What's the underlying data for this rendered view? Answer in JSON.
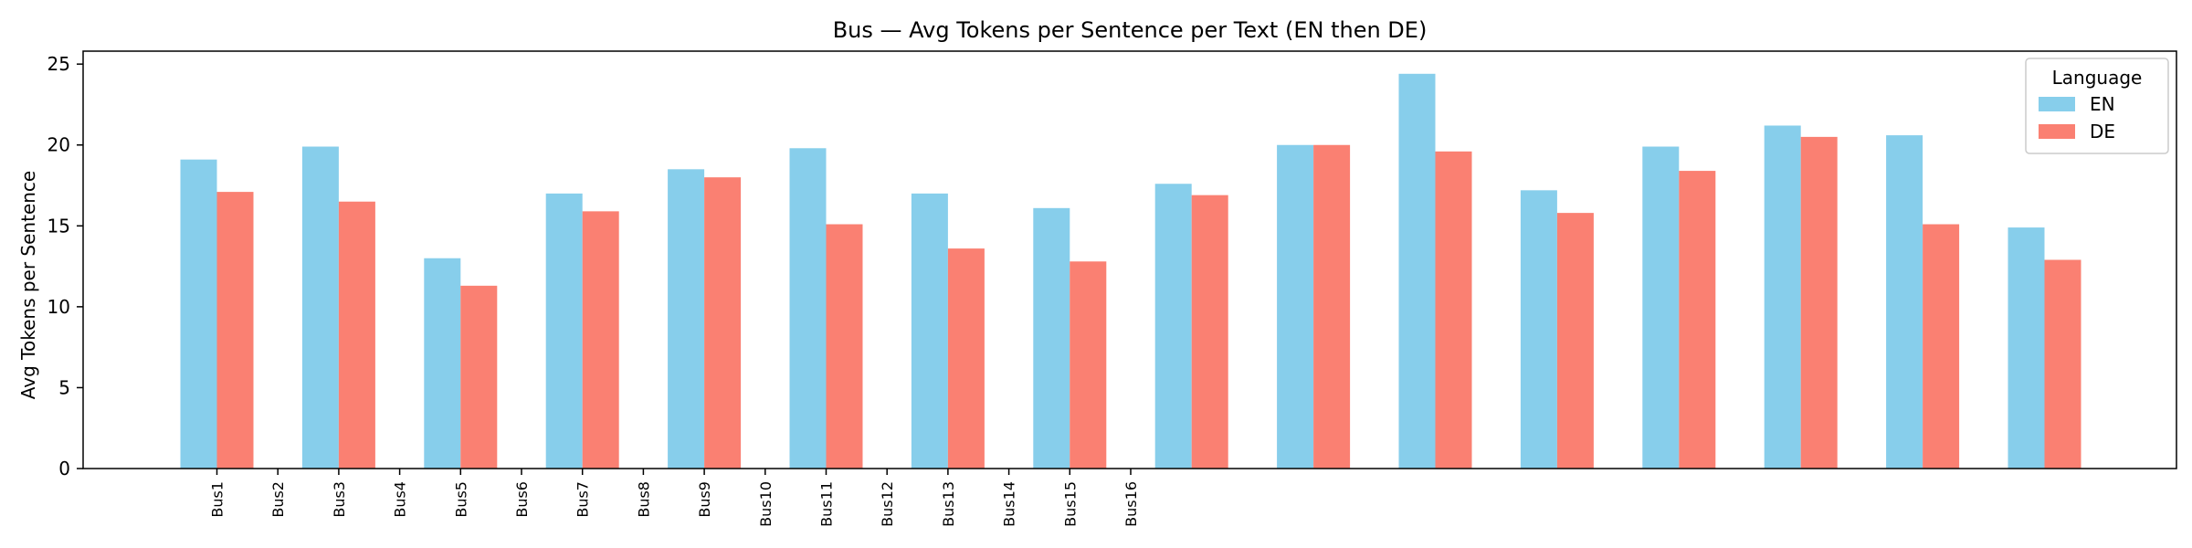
{
  "chart_data": {
    "type": "bar",
    "title": "Bus — Avg Tokens per Sentence per Text (EN then DE)",
    "xlabel": "",
    "ylabel": "Avg Tokens per Sentence",
    "ylim": [
      0,
      25.8
    ],
    "yticks": [
      0,
      5,
      10,
      15,
      20,
      25
    ],
    "categories": [
      "Bus1",
      "Bus2",
      "Bus3",
      "Bus4",
      "Bus5",
      "Bus6",
      "Bus7",
      "Bus8",
      "Bus9",
      "Bus10",
      "Bus11",
      "Bus12",
      "Bus13",
      "Bus14",
      "Bus15",
      "Bus16"
    ],
    "group_count": 16,
    "series": [
      {
        "name": "EN",
        "color": "#87CEEB",
        "values": [
          19.1,
          19.9,
          13.0,
          17.0,
          18.5,
          19.8,
          17.0,
          16.1,
          17.6,
          20.0,
          24.4,
          17.2,
          19.9,
          21.2,
          20.6,
          14.9
        ]
      },
      {
        "name": "DE",
        "color": "#FA8072",
        "values": [
          17.1,
          16.5,
          11.3,
          15.9,
          18.0,
          15.1,
          13.6,
          12.8,
          16.9,
          20.0,
          19.6,
          15.8,
          18.4,
          20.5,
          15.1,
          12.9
        ]
      }
    ],
    "legend": {
      "title": "Language",
      "placement": "top-right"
    },
    "grid": false
  }
}
